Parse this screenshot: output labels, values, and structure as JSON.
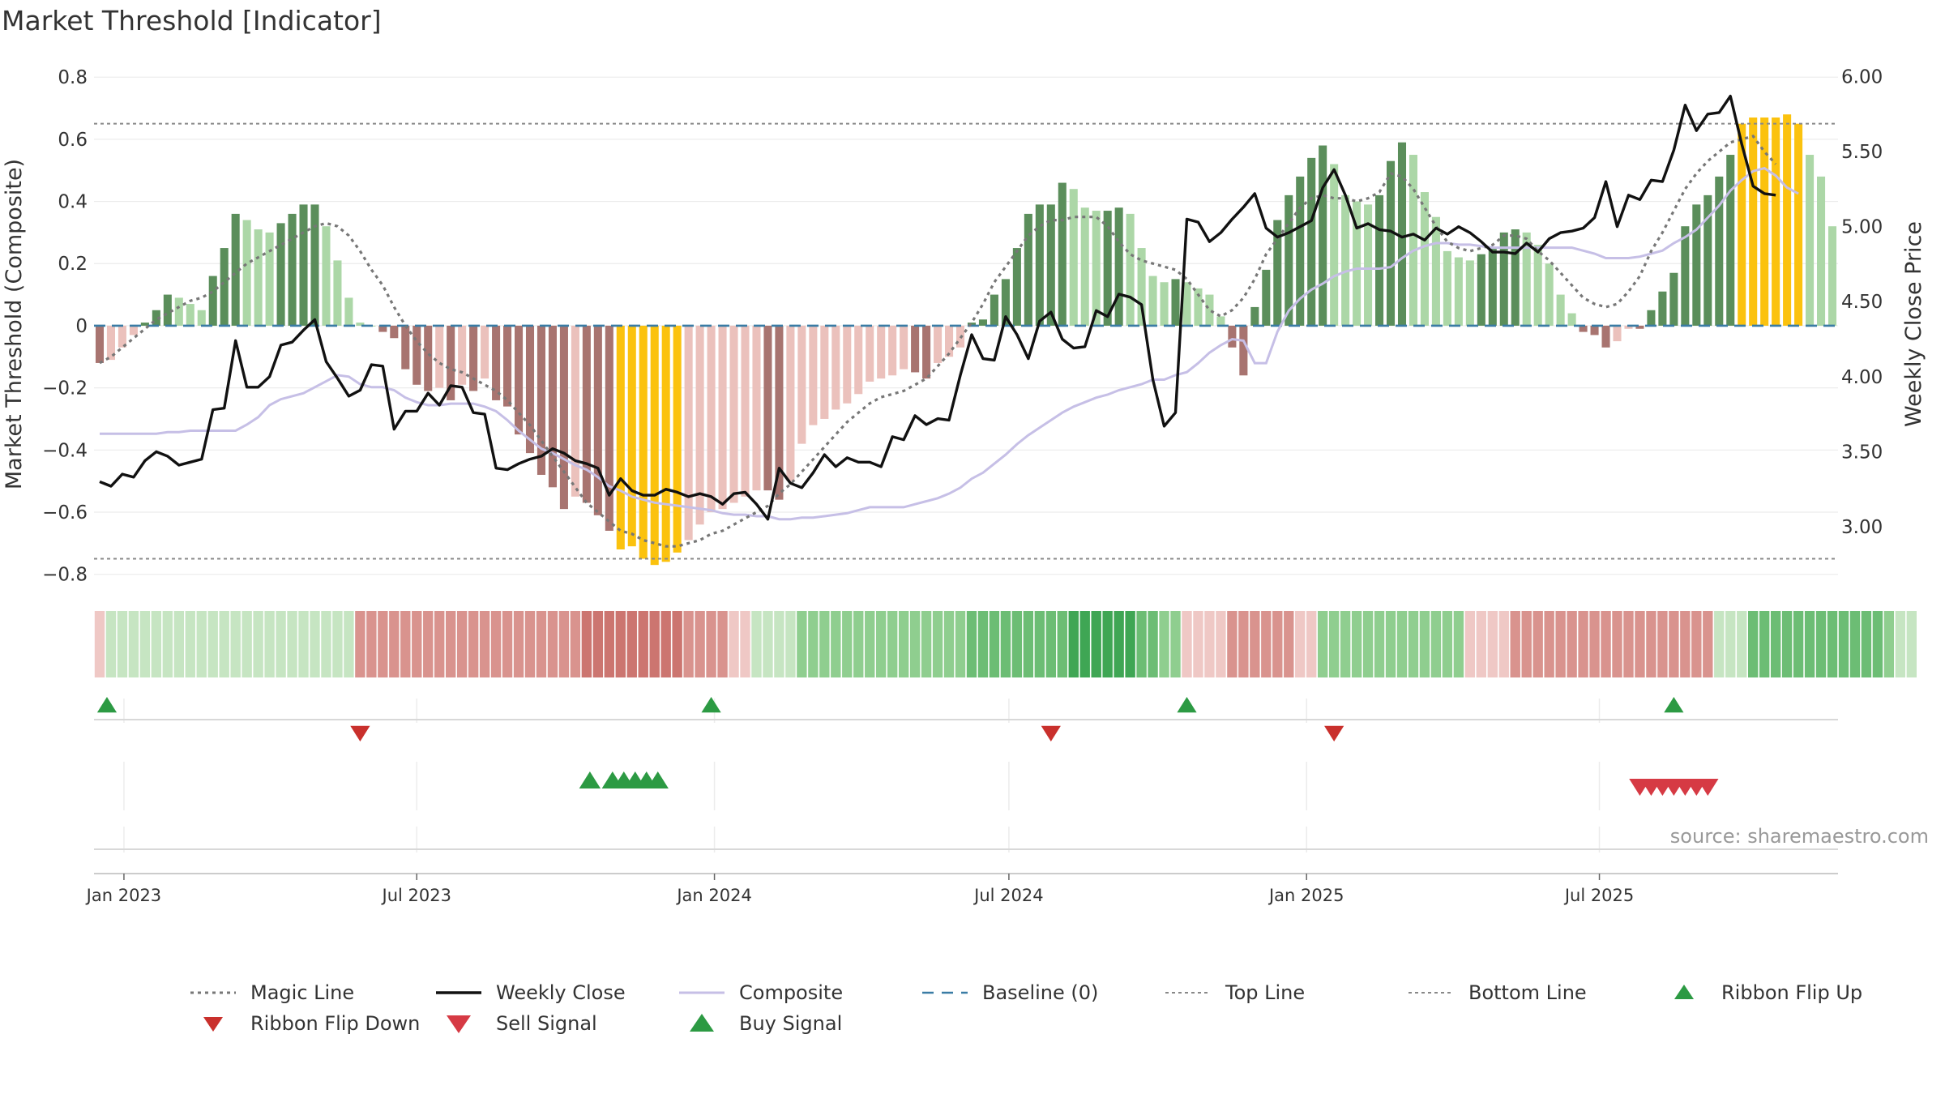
{
  "title": "Market Threshold [Indicator]",
  "source": "source: sharemaestro.com",
  "colors": {
    "pos_dark": "#5b8e5b",
    "pos_light": "#acd7a7",
    "neg_dark": "#a87470",
    "neg_light": "#ebc1bc",
    "extreme": "#fbc20e",
    "close": "#111111",
    "composite": "#c6bfe6",
    "magic": "#777777",
    "baseline": "#3a7ca5",
    "buy": "#2c9a43",
    "sell": "#d63a44",
    "flip_down": "#c9302c"
  },
  "chart_data": {
    "type": "bar",
    "xlabel": "",
    "ylabel": "Market Threshold (Composite)",
    "y2label": "Weekly Close Price",
    "ylim": [
      -0.84,
      0.85
    ],
    "y2lim": [
      2.6,
      6.1
    ],
    "yticks": [
      0.8,
      0.6,
      0.4,
      0.2,
      0,
      -0.2,
      -0.4,
      -0.6,
      -0.8
    ],
    "ytick_labels": [
      "0.8",
      "0.6",
      "0.4",
      "0.2",
      "0",
      "−0.2",
      "−0.4",
      "−0.6",
      "−0.8"
    ],
    "y2ticks": [
      6.0,
      5.5,
      5.0,
      4.5,
      4.0,
      3.5,
      3.0
    ],
    "y2tick_labels": [
      "6.00",
      "5.50",
      "5.00",
      "4.50",
      "4.00",
      "3.50",
      "3.00"
    ],
    "x_start": "2022-12-17",
    "x_step_days": 7,
    "xticks": [
      "2023-01-01",
      "2023-07-01",
      "2024-01-01",
      "2024-07-01",
      "2025-01-01",
      "2025-07-01"
    ],
    "xtick_labels": [
      "Jan 2023",
      "Jul 2023",
      "Jan 2024",
      "Jul 2024",
      "Jan 2025",
      "Jul 2025"
    ],
    "top_line": 0.65,
    "bottom_line": -0.75,
    "baseline": 0,
    "grid": true,
    "legend_placement": "bottom",
    "composite_bars": [
      -0.12,
      -0.11,
      -0.07,
      -0.03,
      0.01,
      0.05,
      0.1,
      0.09,
      0.07,
      0.05,
      0.16,
      0.25,
      0.36,
      0.34,
      0.31,
      0.3,
      0.33,
      0.36,
      0.39,
      0.39,
      0.32,
      0.21,
      0.09,
      0.01,
      0.0,
      -0.02,
      -0.04,
      -0.14,
      -0.19,
      -0.21,
      -0.2,
      -0.24,
      -0.19,
      -0.21,
      -0.17,
      -0.24,
      -0.26,
      -0.35,
      -0.41,
      -0.48,
      -0.52,
      -0.59,
      -0.55,
      -0.57,
      -0.61,
      -0.66,
      -0.72,
      -0.71,
      -0.75,
      -0.77,
      -0.76,
      -0.73,
      -0.69,
      -0.64,
      -0.6,
      -0.59,
      -0.57,
      -0.55,
      -0.53,
      -0.53,
      -0.56,
      -0.5,
      -0.38,
      -0.32,
      -0.3,
      -0.27,
      -0.25,
      -0.22,
      -0.18,
      -0.17,
      -0.16,
      -0.14,
      -0.15,
      -0.17,
      -0.12,
      -0.1,
      -0.07,
      0.01,
      0.02,
      0.1,
      0.15,
      0.25,
      0.36,
      0.39,
      0.39,
      0.46,
      0.44,
      0.38,
      0.37,
      0.37,
      0.38,
      0.36,
      0.25,
      0.16,
      0.14,
      0.15,
      0.14,
      0.12,
      0.1,
      0.03,
      -0.07,
      -0.16,
      0.06,
      0.18,
      0.34,
      0.42,
      0.48,
      0.54,
      0.58,
      0.52,
      0.42,
      0.4,
      0.39,
      0.42,
      0.53,
      0.59,
      0.55,
      0.43,
      0.35,
      0.24,
      0.22,
      0.21,
      0.23,
      0.25,
      0.3,
      0.31,
      0.3,
      0.26,
      0.2,
      0.1,
      0.04,
      -0.02,
      -0.03,
      -0.07,
      -0.05,
      -0.01,
      -0.01,
      0.05,
      0.11,
      0.17,
      0.32,
      0.39,
      0.42,
      0.48,
      0.55,
      0.65,
      0.67,
      0.67,
      0.67,
      0.68,
      0.65,
      0.55,
      0.48,
      0.32
    ],
    "weekly_close": [
      3.3,
      3.27,
      3.35,
      3.33,
      3.44,
      3.5,
      3.47,
      3.41,
      3.43,
      3.45,
      3.78,
      3.79,
      4.24,
      3.93,
      3.93,
      4.0,
      4.21,
      4.23,
      4.31,
      4.38,
      4.1,
      3.99,
      3.87,
      3.91,
      4.08,
      4.07,
      3.65,
      3.77,
      3.77,
      3.89,
      3.81,
      3.94,
      3.93,
      3.76,
      3.75,
      3.39,
      3.38,
      3.42,
      3.45,
      3.47,
      3.52,
      3.49,
      3.44,
      3.42,
      3.39,
      3.21,
      3.32,
      3.24,
      3.21,
      3.21,
      3.25,
      3.23,
      3.2,
      3.22,
      3.2,
      3.15,
      3.22,
      3.23,
      3.15,
      3.05,
      3.39,
      3.29,
      3.26,
      3.36,
      3.48,
      3.4,
      3.46,
      3.43,
      3.43,
      3.4,
      3.6,
      3.58,
      3.74,
      3.68,
      3.72,
      3.71,
      4.01,
      4.28,
      4.12,
      4.11,
      4.4,
      4.28,
      4.12,
      4.37,
      4.43,
      4.25,
      4.19,
      4.2,
      4.44,
      4.4,
      4.55,
      4.53,
      4.48,
      3.98,
      3.67,
      3.76,
      5.05,
      5.03,
      4.9,
      4.96,
      5.05,
      5.13,
      5.22,
      4.99,
      4.93,
      4.96,
      5.0,
      5.04,
      5.26,
      5.38,
      5.21,
      4.99,
      5.02,
      4.98,
      4.97,
      4.93,
      4.95,
      4.91,
      4.99,
      4.95,
      5.0,
      4.96,
      4.9,
      4.83,
      4.83,
      4.82,
      4.89,
      4.83,
      4.92,
      4.96,
      4.97,
      4.99,
      5.06,
      5.3,
      5.0,
      5.21,
      5.18,
      5.31,
      5.3,
      5.51,
      5.81,
      5.64,
      5.75,
      5.76,
      5.87,
      5.55,
      5.27,
      5.22,
      5.21
    ],
    "composite_line": [
      3.62,
      3.62,
      3.62,
      3.62,
      3.62,
      3.62,
      3.63,
      3.63,
      3.64,
      3.64,
      3.64,
      3.64,
      3.64,
      3.68,
      3.73,
      3.81,
      3.85,
      3.87,
      3.89,
      3.93,
      3.97,
      4.01,
      4.0,
      3.95,
      3.93,
      3.93,
      3.91,
      3.86,
      3.83,
      3.81,
      3.81,
      3.82,
      3.82,
      3.82,
      3.8,
      3.77,
      3.71,
      3.64,
      3.58,
      3.52,
      3.49,
      3.45,
      3.41,
      3.38,
      3.33,
      3.27,
      3.24,
      3.2,
      3.18,
      3.16,
      3.15,
      3.14,
      3.13,
      3.12,
      3.11,
      3.09,
      3.08,
      3.08,
      3.07,
      3.07,
      3.05,
      3.05,
      3.06,
      3.06,
      3.07,
      3.08,
      3.09,
      3.11,
      3.13,
      3.13,
      3.13,
      3.13,
      3.15,
      3.17,
      3.19,
      3.22,
      3.26,
      3.32,
      3.36,
      3.42,
      3.48,
      3.55,
      3.61,
      3.66,
      3.71,
      3.76,
      3.8,
      3.83,
      3.86,
      3.88,
      3.91,
      3.93,
      3.95,
      3.98,
      3.98,
      4.01,
      4.03,
      4.09,
      4.16,
      4.21,
      4.25,
      4.24,
      4.09,
      4.09,
      4.3,
      4.44,
      4.52,
      4.58,
      4.62,
      4.67,
      4.7,
      4.72,
      4.72,
      4.72,
      4.73,
      4.79,
      4.84,
      4.87,
      4.89,
      4.89,
      4.88,
      4.88,
      4.87,
      4.86,
      4.86,
      4.86,
      4.86,
      4.86,
      4.86,
      4.86,
      4.86,
      4.84,
      4.82,
      4.79,
      4.79,
      4.79,
      4.8,
      4.82,
      4.84,
      4.89,
      4.93,
      4.98,
      5.06,
      5.14,
      5.24,
      5.31,
      5.37,
      5.39,
      5.34,
      5.26,
      5.22
    ],
    "magic_line": [
      -0.12,
      -0.1,
      -0.07,
      -0.04,
      -0.01,
      0.02,
      0.04,
      0.06,
      0.08,
      0.09,
      0.11,
      0.14,
      0.17,
      0.2,
      0.22,
      0.24,
      0.26,
      0.28,
      0.3,
      0.32,
      0.33,
      0.32,
      0.29,
      0.24,
      0.18,
      0.13,
      0.06,
      0.0,
      -0.05,
      -0.09,
      -0.12,
      -0.14,
      -0.15,
      -0.17,
      -0.19,
      -0.21,
      -0.24,
      -0.28,
      -0.32,
      -0.37,
      -0.42,
      -0.47,
      -0.52,
      -0.57,
      -0.6,
      -0.63,
      -0.66,
      -0.67,
      -0.69,
      -0.7,
      -0.71,
      -0.71,
      -0.7,
      -0.69,
      -0.67,
      -0.66,
      -0.64,
      -0.62,
      -0.6,
      -0.58,
      -0.54,
      -0.51,
      -0.47,
      -0.43,
      -0.39,
      -0.35,
      -0.31,
      -0.28,
      -0.25,
      -0.23,
      -0.22,
      -0.21,
      -0.19,
      -0.17,
      -0.13,
      -0.09,
      -0.04,
      0.01,
      0.07,
      0.14,
      0.19,
      0.24,
      0.29,
      0.32,
      0.34,
      0.34,
      0.35,
      0.35,
      0.35,
      0.32,
      0.27,
      0.23,
      0.21,
      0.2,
      0.19,
      0.18,
      0.15,
      0.1,
      0.05,
      0.03,
      0.05,
      0.09,
      0.15,
      0.23,
      0.28,
      0.33,
      0.38,
      0.41,
      0.42,
      0.41,
      0.41,
      0.4,
      0.41,
      0.43,
      0.49,
      0.48,
      0.44,
      0.38,
      0.32,
      0.27,
      0.25,
      0.24,
      0.25,
      0.26,
      0.29,
      0.29,
      0.28,
      0.24,
      0.21,
      0.17,
      0.13,
      0.09,
      0.07,
      0.06,
      0.07,
      0.11,
      0.16,
      0.24,
      0.3,
      0.37,
      0.44,
      0.49,
      0.53,
      0.56,
      0.59,
      0.6,
      0.61,
      0.56,
      0.52
    ],
    "ribbon": [
      -1,
      1,
      1,
      1,
      1,
      1,
      1,
      1,
      1,
      1,
      1,
      1,
      1,
      1,
      1,
      1,
      1,
      1,
      1,
      1,
      1,
      1,
      1,
      -2,
      -2,
      -2,
      -2,
      -2,
      -2,
      -2,
      -2,
      -2,
      -2,
      -2,
      -2,
      -2,
      -2,
      -2,
      -2,
      -2,
      -2,
      -2,
      -2,
      -3,
      -3,
      -3,
      -3,
      -3,
      -3,
      -3,
      -3,
      -3,
      -2,
      -2,
      -2,
      -2,
      -1,
      -1,
      1,
      1,
      1,
      1,
      2,
      2,
      2,
      2,
      2,
      2,
      2,
      2,
      2,
      2,
      2,
      2,
      2,
      2,
      2,
      3,
      3,
      3,
      3,
      3,
      3,
      3,
      3,
      3,
      4,
      4,
      4,
      4,
      4,
      4,
      3,
      3,
      2,
      2,
      -1,
      -1,
      -1,
      -1,
      -2,
      -2,
      -2,
      -2,
      -2,
      -2,
      -1,
      -1,
      2,
      2,
      2,
      2,
      2,
      2,
      2,
      2,
      2,
      2,
      2,
      2,
      2,
      -1,
      -1,
      -1,
      -1,
      -2,
      -2,
      -2,
      -2,
      -2,
      -2,
      -2,
      -2,
      -2,
      -2,
      -2,
      -2,
      -2,
      -2,
      -2,
      -2,
      -2,
      -2,
      1,
      1,
      1,
      3,
      3,
      3,
      3,
      3,
      3,
      3,
      3,
      3,
      3,
      3,
      3,
      2,
      1,
      1
    ],
    "ribbon_flip_up": [
      1,
      54,
      96,
      139
    ],
    "ribbon_flip_down": [
      23,
      84,
      109
    ],
    "buy_signals": [
      43,
      45,
      46,
      47,
      48,
      49
    ],
    "sell_signals": [
      136,
      137,
      138,
      139,
      140,
      141,
      142
    ]
  },
  "legend": [
    {
      "label": "Magic Line",
      "kind": "dotted"
    },
    {
      "label": "Weekly Close",
      "kind": "solid"
    },
    {
      "label": "Composite",
      "kind": "composite"
    },
    {
      "label": "Baseline (0)",
      "kind": "dashed"
    },
    {
      "label": "Top Line",
      "kind": "thin-dotted"
    },
    {
      "label": "Bottom Line",
      "kind": "thin-dotted"
    },
    {
      "label": "Ribbon Flip Up",
      "kind": "tri-up-green"
    },
    {
      "label": "Ribbon Flip Down",
      "kind": "tri-down-darkred"
    },
    {
      "label": "Sell Signal",
      "kind": "tri-down-red"
    },
    {
      "label": "Buy Signal",
      "kind": "tri-up-green-large"
    }
  ]
}
